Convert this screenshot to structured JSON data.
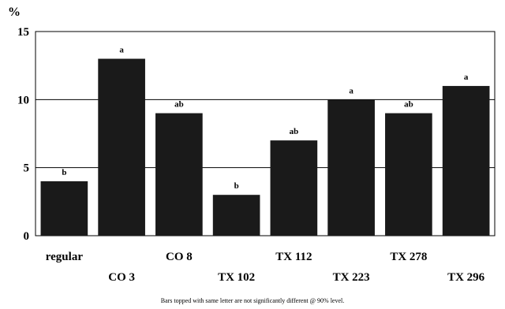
{
  "chart_data": {
    "type": "bar",
    "ylabel": "%",
    "ylim": [
      0,
      15
    ],
    "yticks": [
      0,
      5,
      10,
      15
    ],
    "grid": true,
    "categories": [
      "regular",
      "CO 3",
      "CO 8",
      "TX 102",
      "TX 112",
      "TX 223",
      "TX 278",
      "TX 296"
    ],
    "values": [
      4,
      13,
      9,
      3,
      7,
      10,
      9,
      11
    ],
    "significance_letters": [
      "b",
      "a",
      "ab",
      "b",
      "ab",
      "a",
      "ab",
      "a"
    ],
    "footnote": "Bars topped with same letter are not significantly different @ 90% level.",
    "bar_color": "#1a1a1a"
  }
}
